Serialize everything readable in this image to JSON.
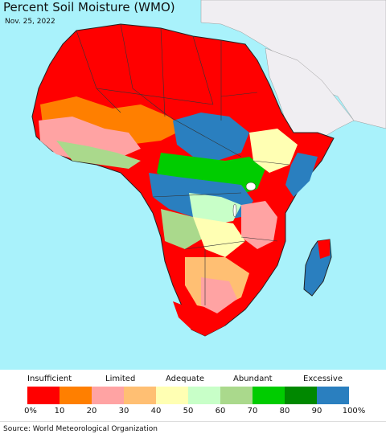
{
  "title": "Percent Soil Moisture (WMO)",
  "date": "Nov. 25, 2022",
  "legend": {
    "categories": [
      "Insufficient",
      "Limited",
      "Adequate",
      "Abundant",
      "Excessive"
    ],
    "ticks": [
      "0%",
      "10",
      "20",
      "30",
      "40",
      "50",
      "60",
      "70",
      "80",
      "90",
      "100%"
    ],
    "colors": [
      "#ff0000",
      "#ff7f00",
      "#ffa3a3",
      "#ffbf73",
      "#ffffb3",
      "#c8ffc8",
      "#aad98c",
      "#00cc00",
      "#008800",
      "#2a7fbf"
    ]
  },
  "source": "Source: World Meteorological Organization",
  "map": {
    "ocean_color": "#a9f2fb",
    "outside_region_color": "#f0eef2"
  }
}
